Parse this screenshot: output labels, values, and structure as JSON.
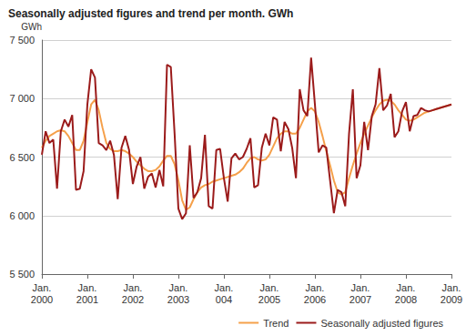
{
  "chart_data": {
    "type": "line",
    "title": "Seasonally adjusted figures and trend per month. GWh",
    "y_label": "GWh",
    "categories": [
      "Jan.\n2000",
      null,
      null,
      null,
      null,
      null,
      null,
      null,
      null,
      null,
      null,
      null,
      "Jan.\n2001",
      null,
      null,
      null,
      null,
      null,
      null,
      null,
      null,
      null,
      null,
      null,
      "Jan.\n2002",
      null,
      null,
      null,
      null,
      null,
      null,
      null,
      null,
      null,
      null,
      null,
      "Jan.\n2003",
      null,
      null,
      null,
      null,
      null,
      null,
      null,
      null,
      null,
      null,
      null,
      "Jan.\n004",
      null,
      null,
      null,
      null,
      null,
      null,
      null,
      null,
      null,
      null,
      null,
      "Jan.\n2005",
      null,
      null,
      null,
      null,
      null,
      null,
      null,
      null,
      null,
      null,
      null,
      "Jan.\n2006",
      null,
      null,
      null,
      null,
      null,
      null,
      null,
      null,
      null,
      null,
      null,
      "Jan.\n2007",
      null,
      null,
      null,
      null,
      null,
      null,
      null,
      null,
      null,
      null,
      null,
      "Jan.\n2008",
      null,
      null,
      null,
      null,
      null,
      null,
      null,
      null,
      null,
      null,
      null,
      "Jan.\n2009"
    ],
    "series": [
      {
        "name": "Trend",
        "color": "#f5a04a",
        "values": [
          6580,
          6640,
          6680,
          6700,
          6720,
          6730,
          6720,
          6680,
          6620,
          6560,
          6560,
          6640,
          6800,
          6950,
          6990,
          6900,
          6750,
          6620,
          6570,
          6550,
          6550,
          6560,
          6550,
          6530,
          6500,
          6460,
          6430,
          6400,
          6380,
          6380,
          6390,
          6420,
          6470,
          6510,
          6510,
          6440,
          6300,
          6130,
          6050,
          6070,
          6140,
          6200,
          6240,
          6260,
          6270,
          6290,
          6300,
          6310,
          6320,
          6330,
          6340,
          6350,
          6370,
          6400,
          6450,
          6490,
          6500,
          6480,
          6470,
          6480,
          6520,
          6590,
          6660,
          6700,
          6720,
          6720,
          6700,
          6700,
          6750,
          6820,
          6890,
          6920,
          6890,
          6800,
          6680,
          6550,
          6430,
          6300,
          6200,
          6180,
          6200,
          6320,
          6430,
          6530,
          6620,
          6700,
          6770,
          6840,
          6900,
          6950,
          6980,
          6990,
          6980,
          6950,
          6900,
          6860,
          6820,
          6810,
          6820,
          6840,
          6860,
          6880,
          6890,
          6900,
          6910,
          6920,
          6930,
          6940,
          6950
        ]
      },
      {
        "name": "Seasonally adjusted figures",
        "color": "#9b1b1b",
        "values": [
          6520,
          6720,
          6620,
          6650,
          6230,
          6720,
          6820,
          6760,
          6860,
          6220,
          6230,
          6380,
          6950,
          7250,
          7180,
          6620,
          6600,
          6560,
          6640,
          6520,
          6140,
          6580,
          6680,
          6560,
          6270,
          6420,
          6500,
          6230,
          6330,
          6360,
          6240,
          6390,
          6250,
          7290,
          7270,
          6700,
          6060,
          5970,
          6020,
          6600,
          6150,
          6200,
          6320,
          6690,
          6080,
          6060,
          6560,
          6570,
          6320,
          6120,
          6490,
          6530,
          6480,
          6500,
          6570,
          6660,
          6240,
          6260,
          6580,
          6700,
          6600,
          6840,
          6820,
          6550,
          6800,
          6740,
          6580,
          6320,
          7080,
          6900,
          6850,
          7350,
          6950,
          6540,
          6600,
          6580,
          6300,
          6020,
          6220,
          6200,
          6080,
          6700,
          7080,
          6320,
          6430,
          6800,
          6560,
          6850,
          6950,
          7260,
          6900,
          6940,
          7040,
          6670,
          6720,
          6890,
          6970,
          6720,
          6850,
          6860,
          6920,
          6900,
          6890,
          6900,
          6910,
          6920,
          6930,
          6940,
          6950
        ]
      }
    ],
    "ylim": [
      5500,
      7500
    ],
    "yticks": [
      {
        "value": 5500,
        "label": "5 500"
      },
      {
        "value": 6000,
        "label": "6 000"
      },
      {
        "value": 6500,
        "label": "6 500"
      },
      {
        "value": 7000,
        "label": "7 000"
      },
      {
        "value": 7500,
        "label": "7 500"
      }
    ],
    "grid": true,
    "legend": "bottom"
  }
}
